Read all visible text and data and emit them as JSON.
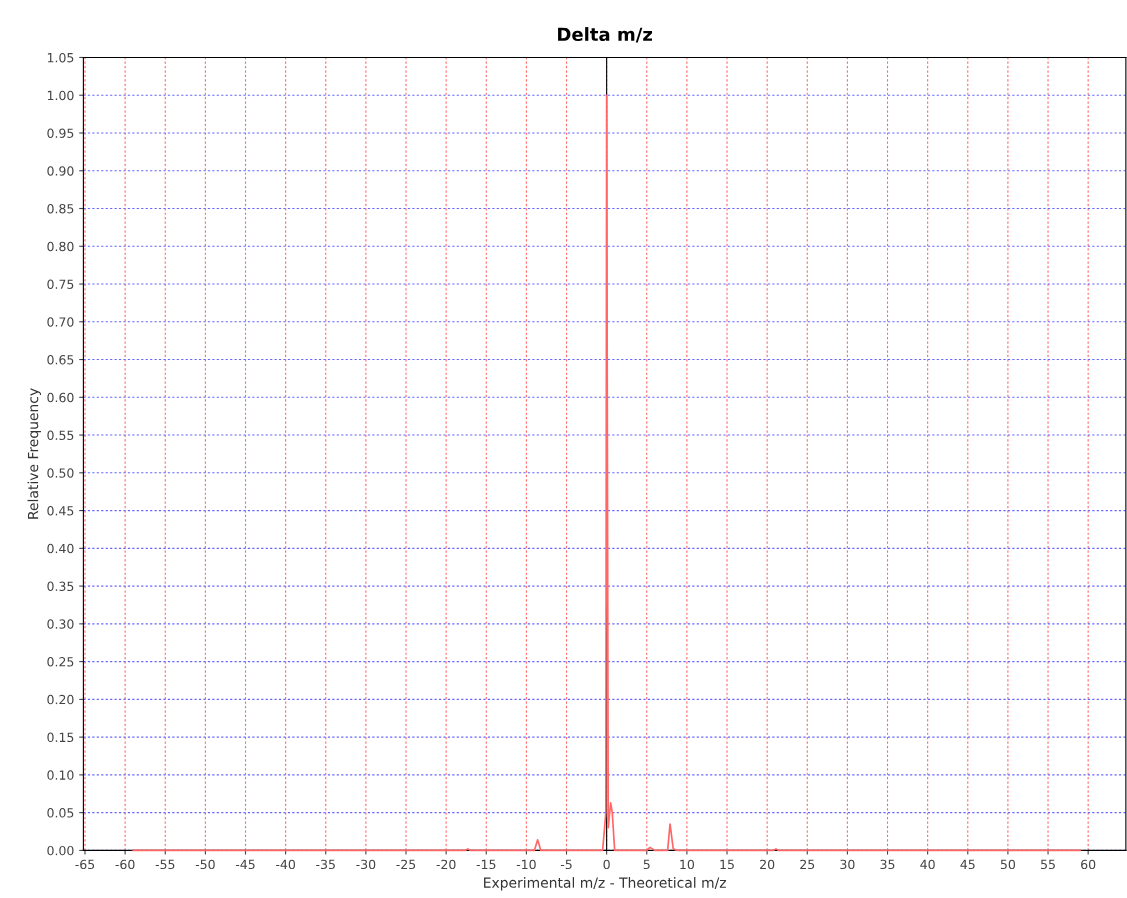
{
  "chart_data": {
    "type": "line",
    "title": "Delta m/z",
    "xlabel": "Experimental m/z - Theoretical m/z",
    "ylabel": "Relative Frequency",
    "xlim": [
      -65.2,
      64.7
    ],
    "xticks": [
      -65,
      -60,
      -55,
      -50,
      -45,
      -40,
      -35,
      -30,
      -25,
      -20,
      -15,
      -10,
      -5,
      0,
      5,
      10,
      15,
      20,
      25,
      30,
      35,
      40,
      45,
      50,
      55,
      60
    ],
    "ylim": [
      0,
      1.05
    ],
    "yticks": [
      {
        "value": 0,
        "label": "0.00"
      },
      {
        "value": 0.05,
        "label": "0.05"
      },
      {
        "value": 0.1,
        "label": "0.10"
      },
      {
        "value": 0.15,
        "label": "0.15"
      },
      {
        "value": 0.2,
        "label": "0.20"
      },
      {
        "value": 0.25,
        "label": "0.25"
      },
      {
        "value": 0.3,
        "label": "0.30"
      },
      {
        "value": 0.35,
        "label": "0.35"
      },
      {
        "value": 0.4,
        "label": "0.40"
      },
      {
        "value": 0.45,
        "label": "0.45"
      },
      {
        "value": 0.5,
        "label": "0.50"
      },
      {
        "value": 0.55,
        "label": "0.55"
      },
      {
        "value": 0.6,
        "label": "0.60"
      },
      {
        "value": 0.65,
        "label": "0.65"
      },
      {
        "value": 0.7,
        "label": "0.70"
      },
      {
        "value": 0.75,
        "label": "0.75"
      },
      {
        "value": 0.8,
        "label": "0.80"
      },
      {
        "value": 0.85,
        "label": "0.85"
      },
      {
        "value": 0.9,
        "label": "0.90"
      },
      {
        "value": 0.95,
        "label": "0.95"
      },
      {
        "value": 1.0,
        "label": "1.00"
      },
      {
        "value": 1.05,
        "label": "1.05"
      }
    ],
    "grid": true,
    "ref_lines": [
      {
        "axis": "x",
        "value": 0,
        "color": "#000000"
      }
    ],
    "series": [
      {
        "color": "#ff6666",
        "x": [
          -59,
          -17.6,
          -17.3,
          -17.0,
          -9.0,
          -8.6,
          -8.2,
          -0.5,
          -0.1,
          0,
          0.2,
          0.5,
          0.7,
          1.0,
          5.0,
          5.4,
          6.0,
          7.6,
          7.9,
          8.3,
          8.8,
          20.8,
          21.1,
          21.4,
          59
        ],
        "values": [
          0,
          0,
          0.002,
          0,
          0,
          0.014,
          0,
          0,
          0.05,
          1.0,
          0.03,
          0.063,
          0.05,
          0,
          0,
          0.004,
          0,
          0,
          0.035,
          0.002,
          0,
          0,
          0.002,
          0,
          0
        ]
      }
    ]
  }
}
